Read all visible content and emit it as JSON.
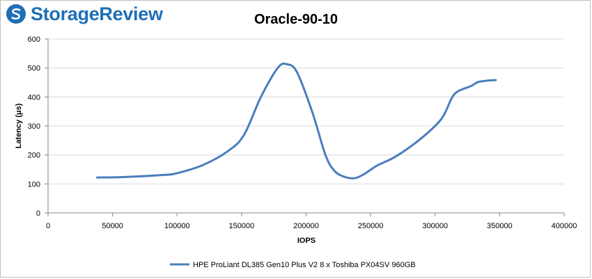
{
  "brand": {
    "name": "StorageReview",
    "icon": "storagereview-logo-icon",
    "color": "#1e6fb5"
  },
  "chart_data": {
    "type": "line",
    "title": "Oracle-90-10",
    "xlabel": "IOPS",
    "ylabel": "Latency (μs)",
    "xlim": [
      0,
      400000
    ],
    "ylim": [
      0,
      600
    ],
    "x_ticks": [
      0,
      50000,
      100000,
      150000,
      200000,
      250000,
      300000,
      350000,
      400000
    ],
    "y_ticks": [
      0,
      100,
      200,
      300,
      400,
      500,
      600
    ],
    "grid": "horizontal",
    "legend": "bottom",
    "series": [
      {
        "name": "HPE ProLiant DL385 Gen10 Plus V2 8 x Toshiba PX04SV 960GB",
        "color": "#4a7ebb",
        "points": [
          [
            38000,
            122
          ],
          [
            60000,
            124
          ],
          [
            90000,
            131
          ],
          [
            100000,
            137
          ],
          [
            120000,
            165
          ],
          [
            140000,
            215
          ],
          [
            152000,
            270
          ],
          [
            165000,
            400
          ],
          [
            178000,
            500
          ],
          [
            185000,
            513
          ],
          [
            193000,
            485
          ],
          [
            205000,
            345
          ],
          [
            215000,
            200
          ],
          [
            222000,
            145
          ],
          [
            230000,
            124
          ],
          [
            238000,
            120
          ],
          [
            245000,
            134
          ],
          [
            255000,
            163
          ],
          [
            270000,
            196
          ],
          [
            290000,
            260
          ],
          [
            305000,
            325
          ],
          [
            313000,
            397
          ],
          [
            318000,
            420
          ],
          [
            328000,
            438
          ],
          [
            333000,
            451
          ],
          [
            340000,
            456
          ],
          [
            347000,
            458
          ]
        ]
      }
    ]
  }
}
